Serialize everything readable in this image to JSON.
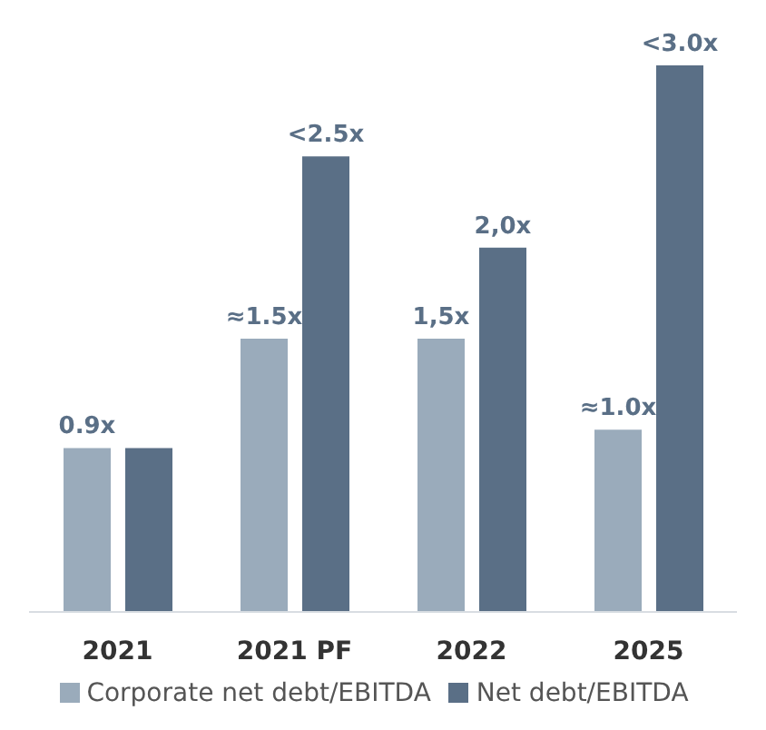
{
  "chart_data": {
    "type": "bar",
    "categories": [
      "2021",
      "2021 PF",
      "2022",
      "2025"
    ],
    "series": [
      {
        "name": "Corporate net debt/EBITDA",
        "color": "#9aabbb",
        "values": [
          0.9,
          1.5,
          1.5,
          1.0
        ],
        "value_labels": [
          "0.9x",
          "≈1.5x",
          "1,5x",
          "≈1.0x"
        ]
      },
      {
        "name": "Net debt/EBITDA",
        "color": "#5a6f86",
        "values": [
          0.9,
          2.5,
          2.0,
          3.0
        ],
        "value_labels": [
          null,
          "<2.5x",
          "2,0x",
          "<3.0x"
        ]
      }
    ],
    "tick_labels": "x",
    "legend": "bottom",
    "grid": false
  }
}
